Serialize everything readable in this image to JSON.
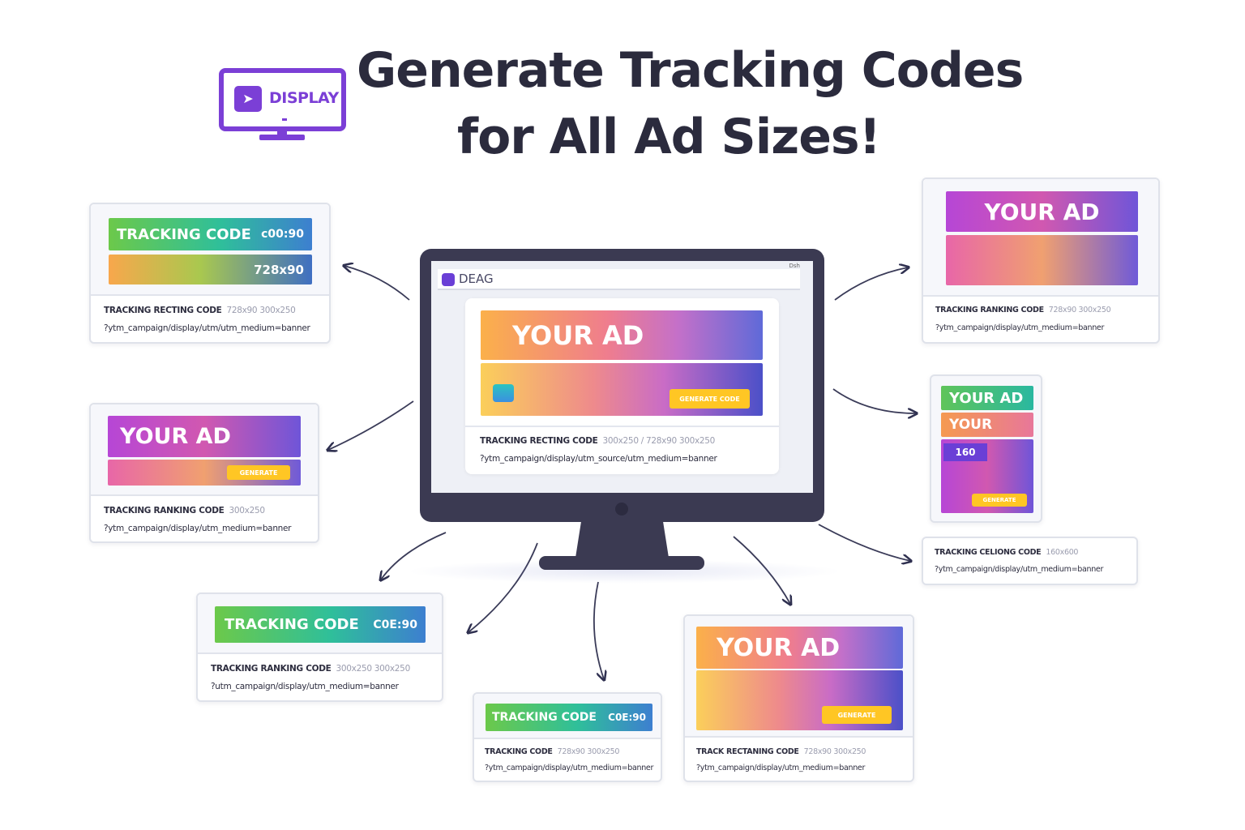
{
  "logo": {
    "label": "DISPLAY",
    "color": "#7b3fd6"
  },
  "title": {
    "line1": "Generate Tracking Codes",
    "line2": "for All Ad Sizes!"
  },
  "monitor": {
    "brand": "DEAG",
    "corner": "Dsh",
    "ad_headline": "YOUR AD",
    "cta": "GENERATE CODE",
    "code_label": "TRACKING RECTING CODE",
    "code_size": "300x250 / 728x90 300x250",
    "code_url": "?ytm_campaign/display/utm_source/utm_medium=banner"
  },
  "cards": [
    {
      "banner": "TRACKING CODE",
      "size": "c00:90",
      "size2": "728x90",
      "label": "TRACKING RECTING CODE",
      "dim": "728x90 300x250",
      "url": "?ytm_campaign/display/utm/utm_medium=banner"
    },
    {
      "banner": "YOUR AD",
      "cta": "GENERATE",
      "label": "TRACKING RANKING CODE",
      "dim": "300x250",
      "url": "?ytm_campaign/display/utm_medium=banner"
    },
    {
      "banner": "TRACKING CODE",
      "size": "C0E:90",
      "label": "TRACKING RANKING CODE",
      "dim": "300x250 300x250",
      "url": "?utm_campaign/display/utm_medium=banner"
    },
    {
      "banner": "TRACKING CODE",
      "size": "C0E:90",
      "label": "TRACKING CODE",
      "dim": "728x90 300x250",
      "url": "?ytm_campaign/display/utm_medium=banner"
    },
    {
      "banner": "YOUR AD",
      "cta": "GENERATE",
      "label": "TRACK RECTANING CODE",
      "dim": "728x90 300x250",
      "url": "?ytm_campaign/display/utm_medium=banner"
    },
    {
      "banner": "YOUR AD",
      "label": "TRACKING RANKING CODE",
      "dim": "728x90 300x250",
      "url": "?ytm_campaign/display/utm_medium=banner"
    },
    {
      "banner": "YOUR AD",
      "banner2": "YOUR",
      "badge": "160",
      "cta": "GENERATE"
    },
    {
      "label": "TRACKING CELIONG CODE",
      "dim": "160x600",
      "url": "?ytm_campaign/display/utm_medium=banner"
    }
  ],
  "colors": {
    "dark": "#3b3a52",
    "cta": "#ffc624",
    "accent": "#7b3fd6"
  }
}
